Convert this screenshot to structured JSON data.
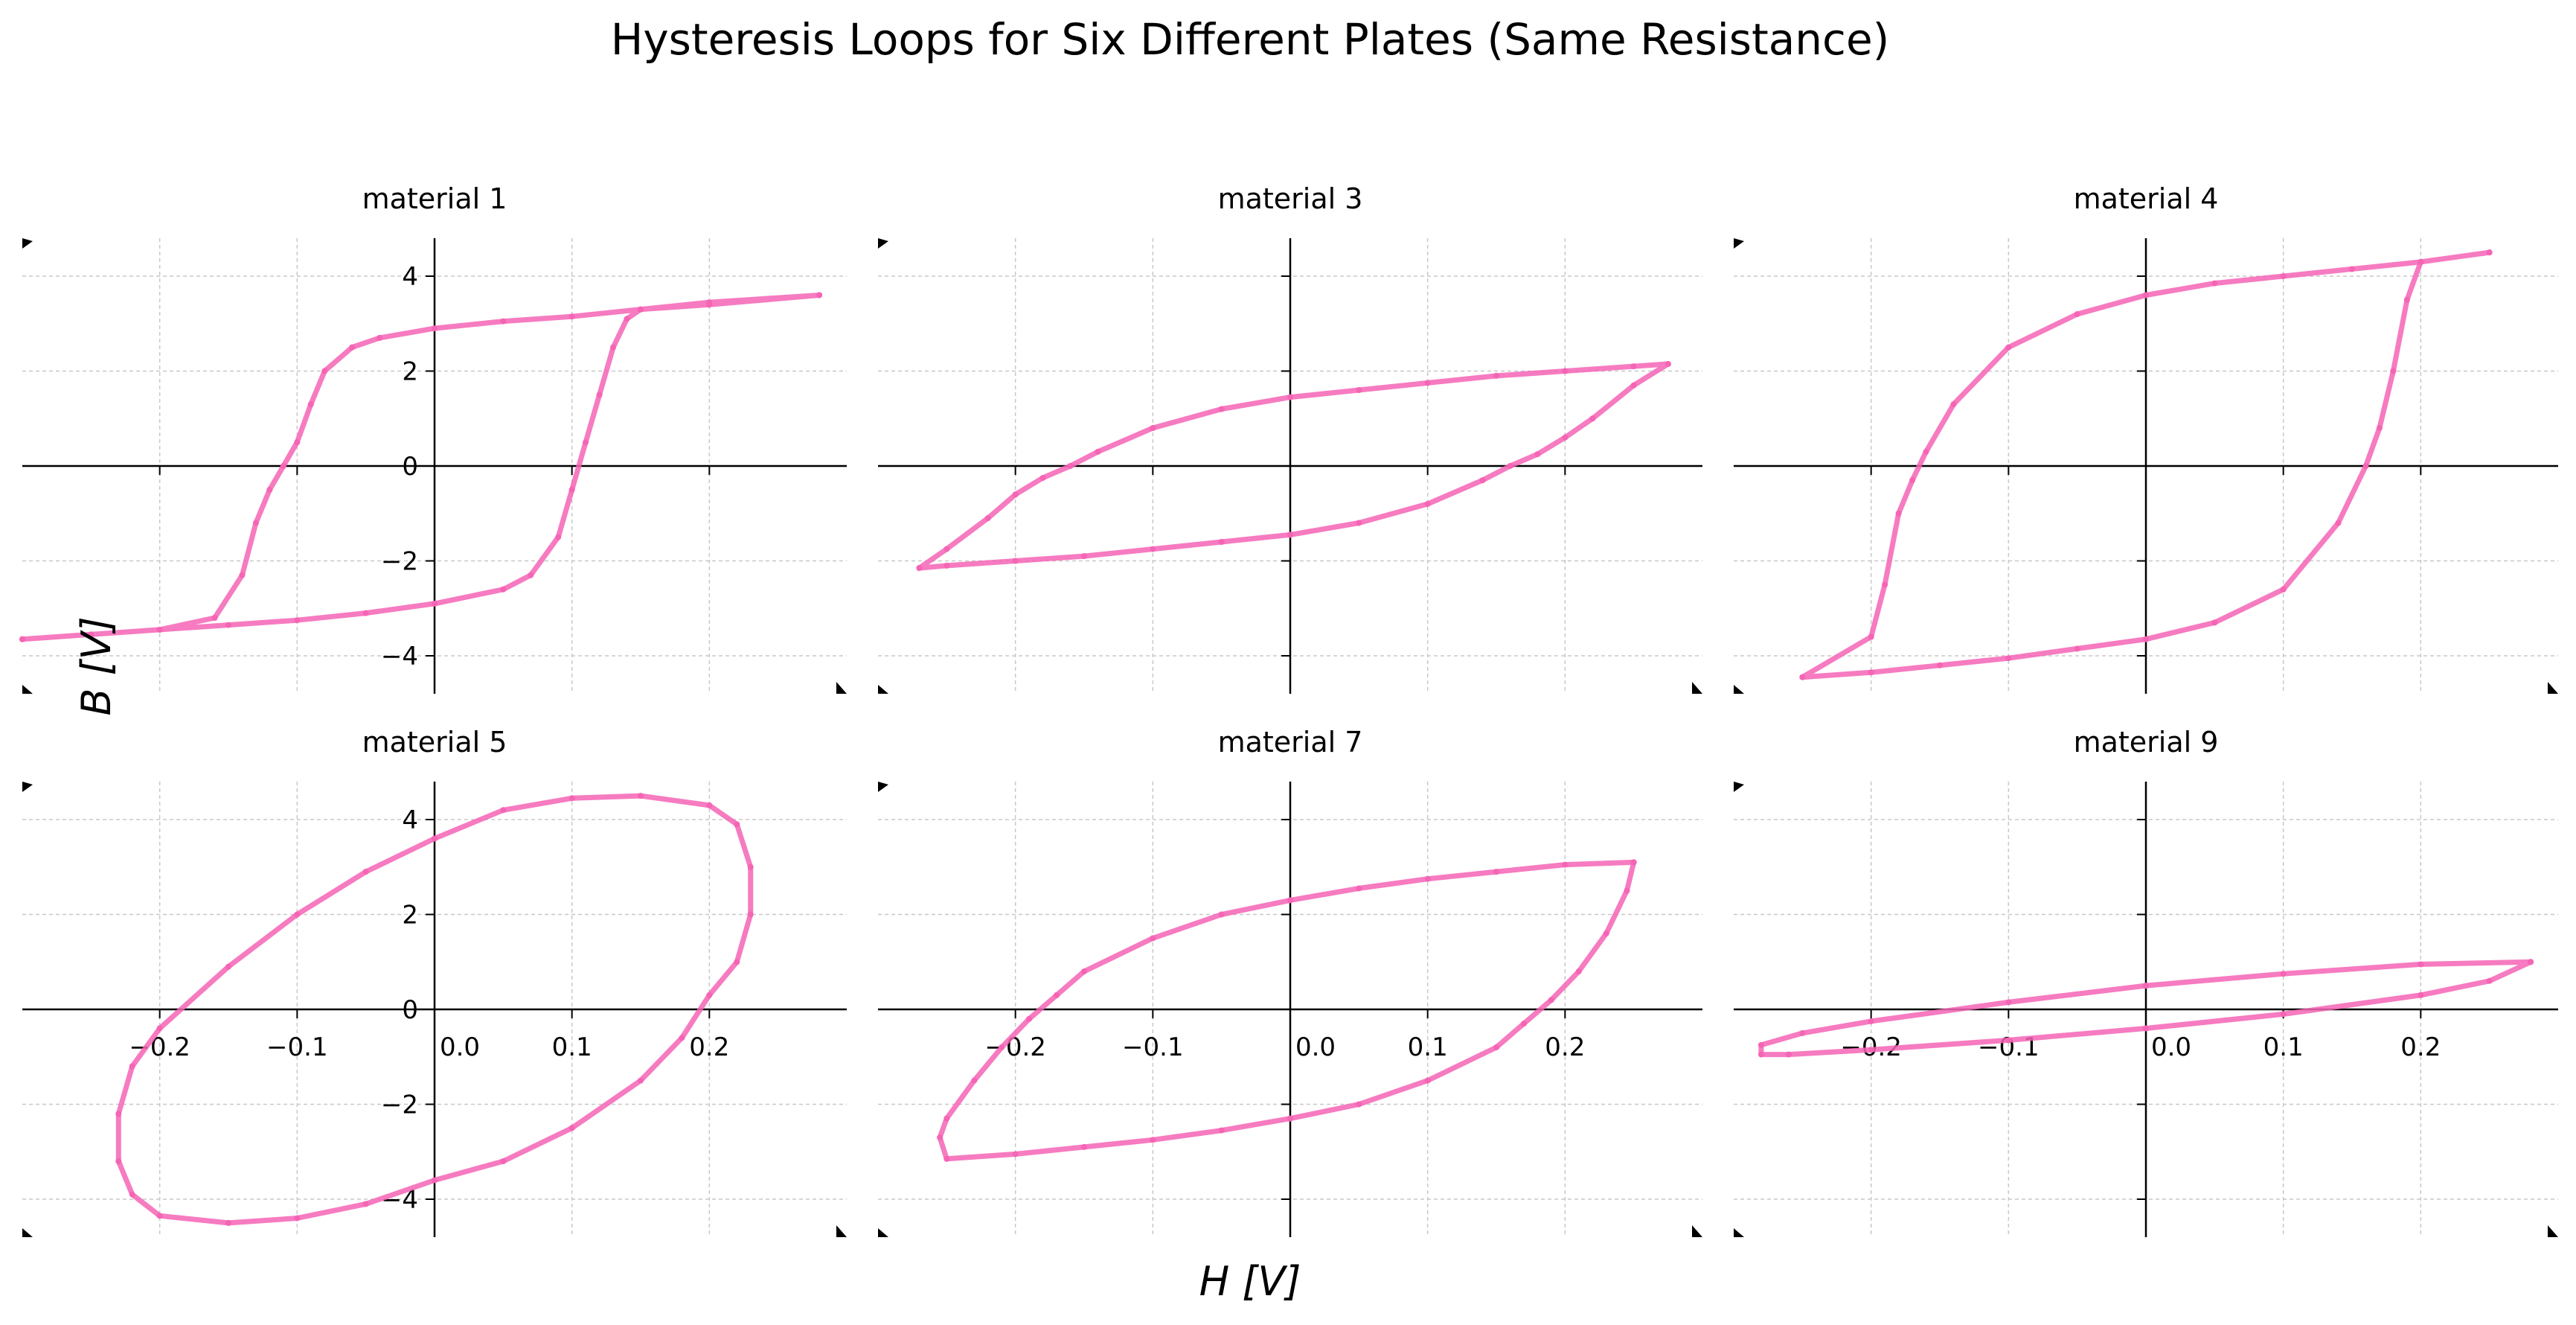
{
  "figure": {
    "title": "Hysteresis Loops for Six Different Plates (Same Resistance)",
    "xlabel": "H [V]",
    "ylabel": "B [V]",
    "line_color": "#f564b5",
    "grid_color": "#c8c8c8"
  },
  "chart_data": [
    {
      "type": "scatter",
      "title": "material 1",
      "xlim": [
        -0.3,
        0.3
      ],
      "ylim": [
        -4.8,
        4.8
      ],
      "x_ticks": [
        -0.2,
        -0.1,
        0,
        0.1,
        0.2
      ],
      "y_ticks": [
        -4,
        -2,
        0,
        2,
        4
      ],
      "x_tick_labels": [],
      "y_tick_labels": [
        "−4",
        "−2",
        "0",
        "2",
        "4"
      ],
      "grid": true,
      "series": [
        {
          "x": [
            0.28,
            0.2,
            0.15,
            0.14,
            0.13,
            0.12,
            0.11,
            0.1,
            0.09,
            0.07,
            0.05,
            0.0,
            -0.05,
            -0.1,
            -0.15,
            -0.2,
            -0.25,
            -0.3,
            -0.3,
            -0.25,
            -0.2,
            -0.16,
            -0.14,
            -0.13,
            -0.12,
            -0.11,
            -0.1,
            -0.09,
            -0.08,
            -0.06,
            -0.04,
            0.0,
            0.05,
            0.1,
            0.15,
            0.2,
            0.28
          ],
          "y": [
            3.6,
            3.4,
            3.3,
            3.1,
            2.5,
            1.5,
            0.5,
            -0.5,
            -1.5,
            -2.3,
            -2.6,
            -2.9,
            -3.1,
            -3.25,
            -3.35,
            -3.45,
            -3.55,
            -3.65,
            -3.65,
            -3.55,
            -3.45,
            -3.2,
            -2.3,
            -1.2,
            -0.5,
            0.0,
            0.5,
            1.3,
            2.0,
            2.5,
            2.7,
            2.9,
            3.05,
            3.15,
            3.3,
            3.45,
            3.6
          ]
        }
      ]
    },
    {
      "type": "scatter",
      "title": "material 3",
      "xlim": [
        -0.3,
        0.3
      ],
      "ylim": [
        -4.8,
        4.8
      ],
      "x_ticks": [
        -0.2,
        -0.1,
        0,
        0.1,
        0.2
      ],
      "y_ticks": [
        -4,
        -2,
        0,
        2,
        4
      ],
      "x_tick_labels": [],
      "y_tick_labels": [],
      "grid": true,
      "series": [
        {
          "x": [
            0.275,
            0.25,
            0.22,
            0.2,
            0.18,
            0.16,
            0.14,
            0.1,
            0.05,
            0.0,
            -0.05,
            -0.1,
            -0.15,
            -0.2,
            -0.25,
            -0.27,
            -0.27,
            -0.25,
            -0.22,
            -0.2,
            -0.18,
            -0.16,
            -0.14,
            -0.1,
            -0.05,
            0.0,
            0.05,
            0.1,
            0.15,
            0.2,
            0.25,
            0.275
          ],
          "y": [
            2.15,
            1.7,
            1.0,
            0.6,
            0.25,
            0.0,
            -0.3,
            -0.8,
            -1.2,
            -1.45,
            -1.6,
            -1.75,
            -1.9,
            -2.0,
            -2.1,
            -2.15,
            -2.15,
            -1.75,
            -1.1,
            -0.6,
            -0.25,
            0.0,
            0.3,
            0.8,
            1.2,
            1.45,
            1.6,
            1.75,
            1.9,
            2.0,
            2.1,
            2.15
          ]
        }
      ]
    },
    {
      "type": "scatter",
      "title": "material 4",
      "xlim": [
        -0.3,
        0.3
      ],
      "ylim": [
        -4.8,
        4.8
      ],
      "x_ticks": [
        -0.2,
        -0.1,
        0,
        0.1,
        0.2
      ],
      "y_ticks": [
        -4,
        -2,
        0,
        2,
        4
      ],
      "x_tick_labels": [],
      "y_tick_labels": [],
      "grid": true,
      "series": [
        {
          "x": [
            0.25,
            0.2,
            0.19,
            0.18,
            0.17,
            0.16,
            0.14,
            0.1,
            0.05,
            0.0,
            -0.05,
            -0.1,
            -0.15,
            -0.2,
            -0.25,
            -0.25,
            -0.2,
            -0.19,
            -0.18,
            -0.17,
            -0.16,
            -0.14,
            -0.1,
            -0.05,
            0.0,
            0.05,
            0.1,
            0.15,
            0.2,
            0.25
          ],
          "y": [
            4.5,
            4.3,
            3.5,
            2.0,
            0.8,
            0.0,
            -1.2,
            -2.6,
            -3.3,
            -3.65,
            -3.85,
            -4.05,
            -4.2,
            -4.35,
            -4.45,
            -4.45,
            -3.6,
            -2.5,
            -1.0,
            -0.3,
            0.3,
            1.3,
            2.5,
            3.2,
            3.6,
            3.85,
            4.0,
            4.15,
            4.3,
            4.5
          ]
        }
      ]
    },
    {
      "type": "scatter",
      "title": "material 5",
      "xlim": [
        -0.3,
        0.3
      ],
      "ylim": [
        -4.8,
        4.8
      ],
      "x_ticks": [
        -0.2,
        -0.1,
        0,
        0.1,
        0.2
      ],
      "y_ticks": [
        -4,
        -2,
        0,
        2,
        4
      ],
      "x_tick_labels": [
        "−0.2",
        "−0.1",
        "0.0",
        "0.1",
        "0.2"
      ],
      "y_tick_labels": [
        "−4",
        "−2",
        "0",
        "2",
        "4"
      ],
      "grid": true,
      "series": [
        {
          "x": [
            0.0,
            0.05,
            0.1,
            0.15,
            0.2,
            0.22,
            0.23,
            0.23,
            0.22,
            0.2,
            0.18,
            0.15,
            0.1,
            0.05,
            0.0,
            -0.05,
            -0.1,
            -0.15,
            -0.2,
            -0.22,
            -0.23,
            -0.23,
            -0.22,
            -0.2,
            -0.15,
            -0.1,
            -0.05,
            0.0
          ],
          "y": [
            3.6,
            4.2,
            4.45,
            4.5,
            4.3,
            3.9,
            3.0,
            2.0,
            1.0,
            0.3,
            -0.6,
            -1.5,
            -2.5,
            -3.2,
            -3.6,
            -4.1,
            -4.4,
            -4.5,
            -4.35,
            -3.9,
            -3.2,
            -2.2,
            -1.2,
            -0.4,
            0.9,
            2.0,
            2.9,
            3.6
          ]
        }
      ]
    },
    {
      "type": "scatter",
      "title": "material 7",
      "xlim": [
        -0.3,
        0.3
      ],
      "ylim": [
        -4.8,
        4.8
      ],
      "x_ticks": [
        -0.2,
        -0.1,
        0,
        0.1,
        0.2
      ],
      "y_ticks": [
        -4,
        -2,
        0,
        2,
        4
      ],
      "x_tick_labels": [
        "−0.2",
        "−0.1",
        "0.0",
        "0.1",
        "0.2"
      ],
      "y_tick_labels": [],
      "grid": true,
      "series": [
        {
          "x": [
            0.25,
            0.245,
            0.23,
            0.21,
            0.19,
            0.17,
            0.15,
            0.1,
            0.05,
            0.0,
            -0.05,
            -0.1,
            -0.15,
            -0.2,
            -0.25,
            -0.255,
            -0.25,
            -0.23,
            -0.21,
            -0.19,
            -0.17,
            -0.15,
            -0.1,
            -0.05,
            0.0,
            0.05,
            0.1,
            0.15,
            0.2,
            0.25
          ],
          "y": [
            3.1,
            2.5,
            1.6,
            0.8,
            0.2,
            -0.3,
            -0.8,
            -1.5,
            -2.0,
            -2.3,
            -2.55,
            -2.75,
            -2.9,
            -3.05,
            -3.15,
            -2.7,
            -2.3,
            -1.5,
            -0.8,
            -0.2,
            0.3,
            0.8,
            1.5,
            2.0,
            2.3,
            2.55,
            2.75,
            2.9,
            3.05,
            3.1
          ]
        }
      ]
    },
    {
      "type": "scatter",
      "title": "material 9",
      "xlim": [
        -0.3,
        0.3
      ],
      "ylim": [
        -4.8,
        4.8
      ],
      "x_ticks": [
        -0.2,
        -0.1,
        0,
        0.1,
        0.2
      ],
      "y_ticks": [
        -4,
        -2,
        0,
        2,
        4
      ],
      "x_tick_labels": [
        "−0.2",
        "−0.1",
        "0.0",
        "0.1",
        "0.2"
      ],
      "y_tick_labels": [],
      "grid": true,
      "series": [
        {
          "x": [
            0.28,
            0.25,
            0.2,
            0.1,
            0.0,
            -0.1,
            -0.2,
            -0.26,
            -0.28,
            -0.28,
            -0.25,
            -0.2,
            -0.1,
            0.0,
            0.1,
            0.2,
            0.28
          ],
          "y": [
            1.0,
            0.6,
            0.3,
            -0.1,
            -0.4,
            -0.65,
            -0.85,
            -0.95,
            -0.95,
            -0.75,
            -0.5,
            -0.25,
            0.15,
            0.5,
            0.75,
            0.95,
            1.0
          ]
        }
      ]
    }
  ]
}
